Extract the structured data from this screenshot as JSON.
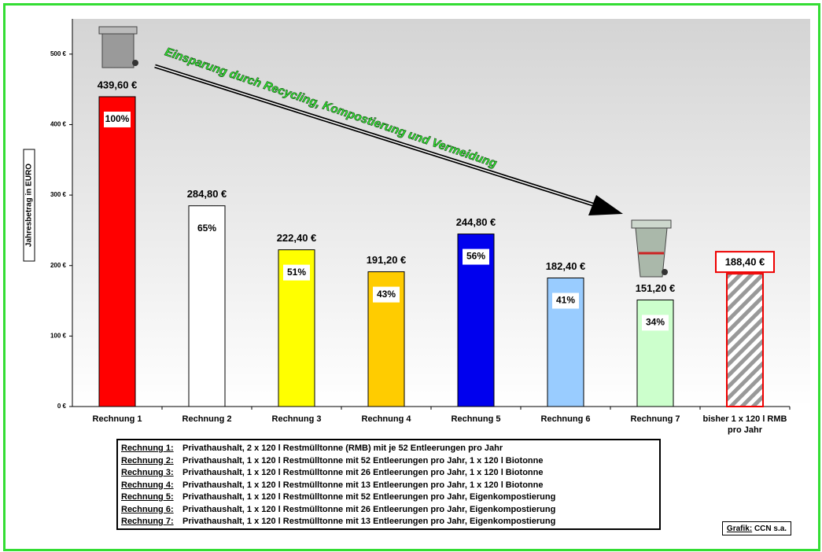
{
  "chart_data": {
    "type": "bar",
    "y_axis_label": "Jahresbetrag in EURO",
    "annotation": "Einsparung durch Recycling, Kompostierung und Vermeidung",
    "categories": [
      "Rechnung 1",
      "Rechnung 2",
      "Rechnung 3",
      "Rechnung 4",
      "Rechnung 5",
      "Rechnung 6",
      "Rechnung 7",
      "bisher 1 x 120 l RMB pro Jahr"
    ],
    "values": [
      439.6,
      284.8,
      222.4,
      191.2,
      244.8,
      182.4,
      151.2,
      188.4
    ],
    "value_labels": [
      "439,60 €",
      "284,80 €",
      "222,40 €",
      "191,20 €",
      "244,80 €",
      "182,40 €",
      "151,20 €",
      "188,40 €"
    ],
    "shares": {
      "values": [
        100,
        65,
        51,
        43,
        56,
        41,
        34,
        null
      ],
      "value_labels": [
        "100%",
        "65%",
        "51%",
        "43%",
        "56%",
        "41%",
        "34%",
        null
      ]
    },
    "colors": [
      "#ff0000",
      "#ffffff",
      "#ffff00",
      "#ffcc00",
      "#0000ee",
      "#99ccff",
      "#ccffcc",
      "#999999"
    ],
    "hatched": [
      false,
      false,
      false,
      false,
      false,
      false,
      false,
      true
    ],
    "ylim": [
      0,
      550
    ],
    "yticks": [
      {
        "value": 0,
        "label": "0 €"
      },
      {
        "value": 100,
        "label": "100 €"
      },
      {
        "value": 200,
        "label": "200 €"
      },
      {
        "value": 300,
        "label": "300 €"
      },
      {
        "value": 400,
        "label": "400 €"
      },
      {
        "value": 500,
        "label": "500 €"
      }
    ],
    "legend_notes": [
      {
        "label": "Rechnung 1:",
        "text": "Privathaushalt, 2 x 120 l Restmülltonne (RMB) mit je 52 Entleerungen pro Jahr"
      },
      {
        "label": "Rechnung 2:",
        "text": "Privathaushalt, 1 x 120 l Restmülltonne mit 52 Entleerungen pro Jahr, 1 x 120 l Biotonne"
      },
      {
        "label": "Rechnung 3:",
        "text": "Privathaushalt, 1 x 120 l Restmülltonne mit 26 Entleerungen pro Jahr, 1 x 120 l Biotonne"
      },
      {
        "label": "Rechnung 4:",
        "text": "Privathaushalt, 1 x 120 l Restmülltonne mit 13 Entleerungen pro Jahr, 1 x 120 l Biotonne"
      },
      {
        "label": "Rechnung 5:",
        "text": "Privathaushalt, 1 x 120 l Restmülltonne mit 52 Entleerungen pro Jahr, Eigenkompostierung"
      },
      {
        "label": "Rechnung 6:",
        "text": "Privathaushalt, 1 x 120 l Restmülltonne mit 26 Entleerungen pro Jahr, Eigenkompostierung"
      },
      {
        "label": "Rechnung 7:",
        "text": "Privathaushalt, 1 x 120 l Restmülltonne mit 13 Entleerungen pro Jahr, Eigenkompostierung"
      }
    ],
    "credit": {
      "label": "Grafik:",
      "text": "CCN s.a."
    }
  }
}
